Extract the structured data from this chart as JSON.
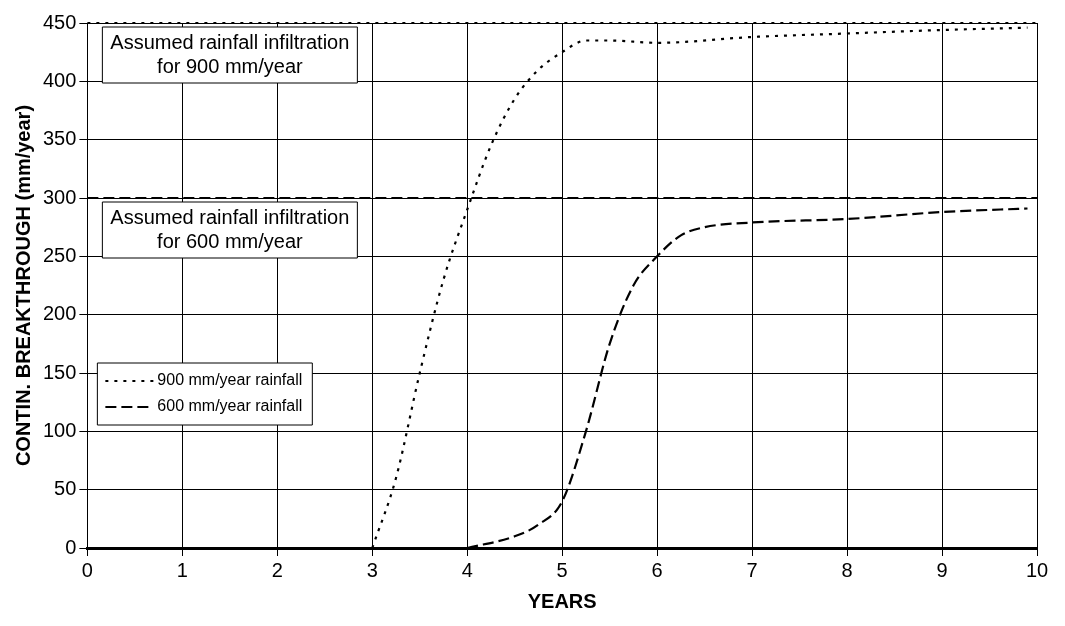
{
  "chart_data": {
    "type": "line",
    "xlabel": "YEARS",
    "ylabel": "CONTIN. BREAKTHROUGH (mm/year)",
    "xlim": [
      0,
      10
    ],
    "xticks": [
      0,
      1,
      2,
      3,
      4,
      5,
      6,
      7,
      8,
      9,
      10
    ],
    "ylim": [
      0,
      450
    ],
    "yticks": [
      0,
      50,
      100,
      150,
      200,
      250,
      300,
      350,
      400,
      450
    ],
    "grid": true,
    "legend": "bottom left",
    "marker": "none",
    "series": [
      {
        "name": "900 mm/year rainfall",
        "color": "#000000",
        "line_style": "dotted",
        "x": [
          3,
          3.25,
          3.5,
          3.75,
          4,
          4.25,
          4.5,
          4.75,
          5,
          5.25,
          5.5,
          6,
          7,
          8,
          9,
          9.9
        ],
        "values": [
          0,
          60,
          150,
          230,
          290,
          345,
          385,
          410,
          425,
          435,
          435,
          433,
          438,
          441,
          444,
          446
        ]
      },
      {
        "name": "600 mm/year rainfall",
        "color": "#000000",
        "line_style": "dashed",
        "x": [
          4,
          4.5,
          4.75,
          5,
          5.25,
          5.5,
          5.75,
          6,
          6.25,
          6.5,
          7,
          8,
          9,
          9.9
        ],
        "values": [
          0,
          10,
          20,
          40,
          100,
          175,
          225,
          250,
          268,
          275,
          279,
          282,
          288,
          291
        ]
      }
    ],
    "ref_lines": [
      {
        "axis": "y",
        "value": 450,
        "label": "Assumed rainfall infiltration\nfor 900 mm/year",
        "color": "#000000",
        "line_style": "dotted"
      },
      {
        "axis": "y",
        "value": 300,
        "label": "Assumed rainfall infiltration\nfor 600 mm/year",
        "color": "#000000",
        "line_style": "dashed"
      }
    ]
  }
}
